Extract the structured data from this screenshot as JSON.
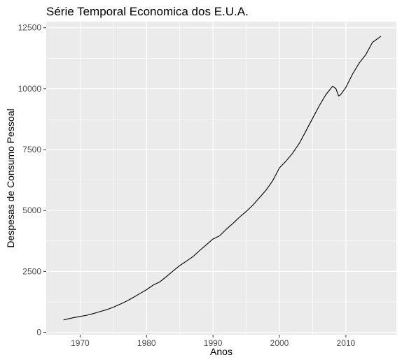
{
  "chart_data": {
    "type": "line",
    "title": "Série Temporal Economica dos E.U.A.",
    "xlabel": "Anos",
    "ylabel": "Despesas de Consumo Pessoal",
    "xlim": [
      1964.9,
      2017.6
    ],
    "ylim": [
      -100,
      12750
    ],
    "x_ticks": [
      1970,
      1980,
      1990,
      2000,
      2010
    ],
    "x_tick_labels": [
      "1970",
      "1980",
      "1990",
      "2000",
      "2010"
    ],
    "y_ticks": [
      0,
      2500,
      5000,
      7500,
      10000,
      12500
    ],
    "y_tick_labels": [
      "0",
      "2500",
      "5000",
      "7500",
      "10000",
      "12500"
    ],
    "grid": true,
    "background": "#ebebeb",
    "grid_color": "#ffffff",
    "line_color": "#000000",
    "series": [
      {
        "x": [
          1967.5,
          1968,
          1969,
          1970,
          1971,
          1972,
          1973,
          1974,
          1975,
          1976,
          1977,
          1978,
          1979,
          1980,
          1981,
          1982,
          1983,
          1984,
          1985,
          1986,
          1987,
          1988,
          1989,
          1990,
          1991,
          1992,
          1993,
          1994,
          1995,
          1996,
          1997,
          1998,
          1999,
          2000,
          2001,
          2002,
          2003,
          2004,
          2005,
          2006,
          2007,
          2008,
          2008.5,
          2008.9,
          2009.2,
          2009.6,
          2010,
          2011,
          2012,
          2013,
          2014,
          2015,
          2015.3
        ],
        "y": [
          510,
          540,
          600,
          650,
          700,
          770,
          850,
          930,
          1030,
          1150,
          1280,
          1430,
          1590,
          1750,
          1940,
          2070,
          2290,
          2520,
          2740,
          2920,
          3110,
          3360,
          3590,
          3830,
          3960,
          4230,
          4470,
          4730,
          4960,
          5220,
          5530,
          5840,
          6230,
          6750,
          7030,
          7360,
          7760,
          8270,
          8790,
          9300,
          9760,
          10100,
          10000,
          9700,
          9750,
          9900,
          10050,
          10600,
          11050,
          11400,
          11900,
          12100,
          12150
        ]
      }
    ]
  }
}
